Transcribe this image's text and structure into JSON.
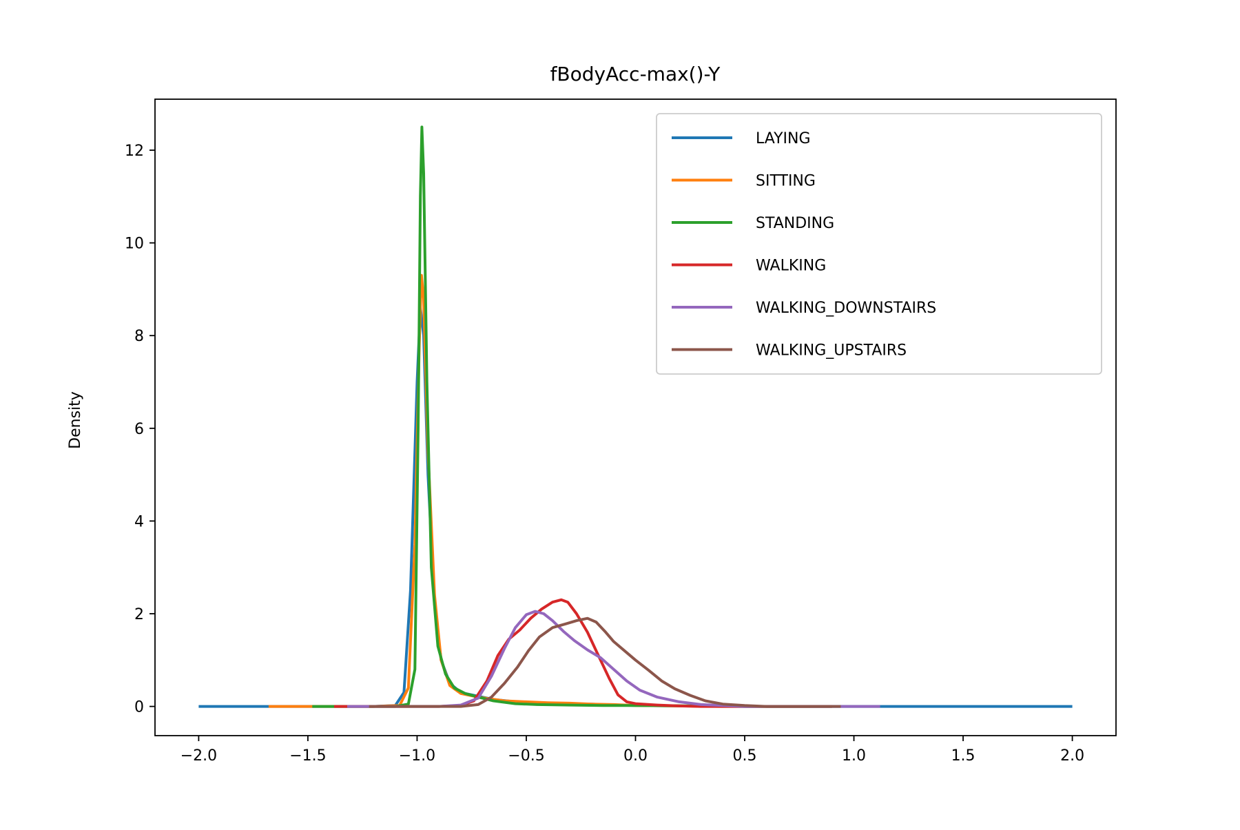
{
  "chart_data": {
    "type": "line",
    "title": "fBodyAcc-max()-Y",
    "xlabel": "",
    "ylabel": "Density",
    "xlim": [
      -2.2,
      2.2
    ],
    "ylim": [
      -0.63,
      13.1
    ],
    "x_ticks": [
      -2.0,
      -1.5,
      -1.0,
      -0.5,
      0.0,
      0.5,
      1.0,
      1.5,
      2.0
    ],
    "x_tick_labels": [
      "−2.0",
      "−1.5",
      "−1.0",
      "−0.5",
      "0.0",
      "0.5",
      "1.0",
      "1.5",
      "2.0"
    ],
    "y_ticks": [
      0,
      2,
      4,
      6,
      8,
      10,
      12
    ],
    "y_tick_labels": [
      "0",
      "2",
      "4",
      "6",
      "8",
      "10",
      "12"
    ],
    "grid": false,
    "legend_position": "upper-right",
    "series": [
      {
        "name": "LAYING",
        "color": "#1f77b4",
        "points": [
          [
            -2.0,
            0
          ],
          [
            -1.2,
            0
          ],
          [
            -1.1,
            0.02
          ],
          [
            -1.06,
            0.3
          ],
          [
            -1.03,
            2.5
          ],
          [
            -1.0,
            7.0
          ],
          [
            -0.985,
            8.6
          ],
          [
            -0.97,
            8.0
          ],
          [
            -0.95,
            5.0
          ],
          [
            -0.92,
            2.2
          ],
          [
            -0.89,
            1.0
          ],
          [
            -0.85,
            0.5
          ],
          [
            -0.8,
            0.3
          ],
          [
            -0.72,
            0.22
          ],
          [
            -0.65,
            0.15
          ],
          [
            -0.55,
            0.1
          ],
          [
            -0.45,
            0.07
          ],
          [
            -0.35,
            0.06
          ],
          [
            -0.2,
            0.05
          ],
          [
            -0.1,
            0.03
          ],
          [
            0.0,
            0.02
          ],
          [
            0.2,
            0.01
          ],
          [
            0.5,
            0.0
          ],
          [
            2.0,
            0.0
          ]
        ]
      },
      {
        "name": "SITTING",
        "color": "#ff7f0e",
        "points": [
          [
            -1.68,
            0
          ],
          [
            -1.2,
            0
          ],
          [
            -1.08,
            0.02
          ],
          [
            -1.04,
            0.4
          ],
          [
            -1.01,
            3.5
          ],
          [
            -0.99,
            7.8
          ],
          [
            -0.98,
            9.3
          ],
          [
            -0.97,
            8.8
          ],
          [
            -0.95,
            5.5
          ],
          [
            -0.92,
            2.4
          ],
          [
            -0.89,
            1.0
          ],
          [
            -0.85,
            0.45
          ],
          [
            -0.8,
            0.28
          ],
          [
            -0.72,
            0.2
          ],
          [
            -0.66,
            0.16
          ],
          [
            -0.6,
            0.12
          ],
          [
            -0.5,
            0.1
          ],
          [
            -0.4,
            0.08
          ],
          [
            -0.3,
            0.07
          ],
          [
            -0.2,
            0.05
          ],
          [
            -0.1,
            0.04
          ],
          [
            0.0,
            0.02
          ],
          [
            0.2,
            0.01
          ],
          [
            0.4,
            0.0
          ],
          [
            0.8,
            0.0
          ]
        ]
      },
      {
        "name": "STANDING",
        "color": "#2ca02c",
        "points": [
          [
            -1.48,
            0
          ],
          [
            -1.1,
            0
          ],
          [
            -1.04,
            0.05
          ],
          [
            -1.01,
            0.8
          ],
          [
            -0.995,
            6.0
          ],
          [
            -0.985,
            11.0
          ],
          [
            -0.978,
            12.5
          ],
          [
            -0.97,
            11.5
          ],
          [
            -0.955,
            7.0
          ],
          [
            -0.935,
            3.0
          ],
          [
            -0.905,
            1.3
          ],
          [
            -0.87,
            0.7
          ],
          [
            -0.83,
            0.4
          ],
          [
            -0.78,
            0.28
          ],
          [
            -0.72,
            0.2
          ],
          [
            -0.65,
            0.12
          ],
          [
            -0.55,
            0.06
          ],
          [
            -0.45,
            0.04
          ],
          [
            -0.3,
            0.03
          ],
          [
            -0.15,
            0.02
          ],
          [
            0.0,
            0.02
          ],
          [
            0.3,
            0.01
          ],
          [
            0.5,
            0.0
          ],
          [
            0.9,
            0.0
          ]
        ]
      },
      {
        "name": "WALKING",
        "color": "#d62728",
        "points": [
          [
            -1.38,
            0
          ],
          [
            -0.9,
            0
          ],
          [
            -0.8,
            0.02
          ],
          [
            -0.74,
            0.12
          ],
          [
            -0.68,
            0.55
          ],
          [
            -0.63,
            1.1
          ],
          [
            -0.58,
            1.45
          ],
          [
            -0.53,
            1.65
          ],
          [
            -0.48,
            1.9
          ],
          [
            -0.43,
            2.1
          ],
          [
            -0.38,
            2.25
          ],
          [
            -0.34,
            2.3
          ],
          [
            -0.31,
            2.25
          ],
          [
            -0.27,
            2.0
          ],
          [
            -0.22,
            1.6
          ],
          [
            -0.17,
            1.1
          ],
          [
            -0.12,
            0.6
          ],
          [
            -0.08,
            0.25
          ],
          [
            -0.04,
            0.1
          ],
          [
            0.0,
            0.06
          ],
          [
            0.1,
            0.03
          ],
          [
            0.2,
            0.01
          ],
          [
            0.3,
            0.0
          ],
          [
            0.9,
            0.0
          ]
        ]
      },
      {
        "name": "WALKING_DOWNSTAIRS",
        "color": "#9467bd",
        "points": [
          [
            -1.32,
            0
          ],
          [
            -0.9,
            0
          ],
          [
            -0.8,
            0.03
          ],
          [
            -0.72,
            0.18
          ],
          [
            -0.66,
            0.65
          ],
          [
            -0.6,
            1.25
          ],
          [
            -0.55,
            1.7
          ],
          [
            -0.5,
            1.98
          ],
          [
            -0.46,
            2.05
          ],
          [
            -0.42,
            2.0
          ],
          [
            -0.38,
            1.85
          ],
          [
            -0.33,
            1.62
          ],
          [
            -0.28,
            1.42
          ],
          [
            -0.22,
            1.22
          ],
          [
            -0.16,
            1.05
          ],
          [
            -0.1,
            0.8
          ],
          [
            -0.04,
            0.55
          ],
          [
            0.02,
            0.35
          ],
          [
            0.1,
            0.2
          ],
          [
            0.2,
            0.1
          ],
          [
            0.3,
            0.04
          ],
          [
            0.4,
            0.02
          ],
          [
            0.5,
            0.0
          ],
          [
            1.12,
            0.0
          ]
        ]
      },
      {
        "name": "WALKING_UPSTAIRS",
        "color": "#8c564b",
        "points": [
          [
            -1.22,
            0
          ],
          [
            -0.8,
            0
          ],
          [
            -0.72,
            0.04
          ],
          [
            -0.66,
            0.2
          ],
          [
            -0.6,
            0.5
          ],
          [
            -0.54,
            0.85
          ],
          [
            -0.49,
            1.2
          ],
          [
            -0.44,
            1.5
          ],
          [
            -0.38,
            1.7
          ],
          [
            -0.32,
            1.78
          ],
          [
            -0.27,
            1.85
          ],
          [
            -0.22,
            1.9
          ],
          [
            -0.18,
            1.82
          ],
          [
            -0.14,
            1.62
          ],
          [
            -0.1,
            1.4
          ],
          [
            -0.05,
            1.2
          ],
          [
            0.0,
            1.0
          ],
          [
            0.06,
            0.78
          ],
          [
            0.12,
            0.55
          ],
          [
            0.18,
            0.38
          ],
          [
            0.25,
            0.24
          ],
          [
            0.32,
            0.12
          ],
          [
            0.4,
            0.05
          ],
          [
            0.5,
            0.02
          ],
          [
            0.6,
            0.0
          ],
          [
            0.94,
            0.0
          ]
        ]
      }
    ]
  }
}
